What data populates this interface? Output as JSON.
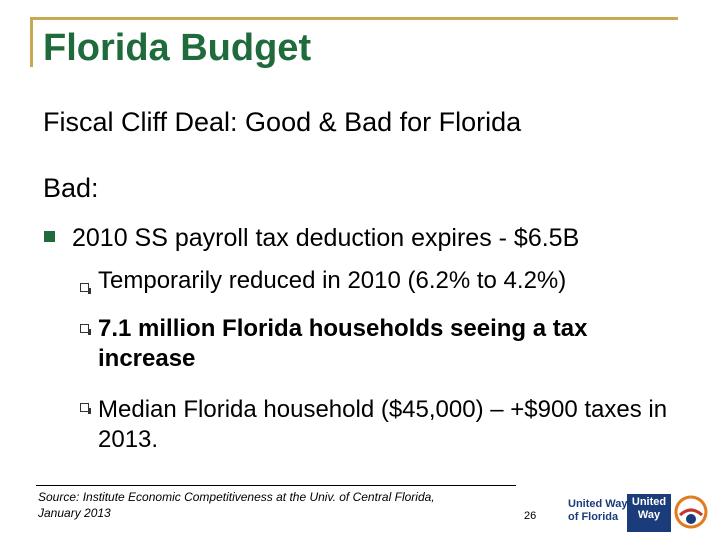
{
  "slide": {
    "title": "Florida Budget",
    "subtitle": "Fiscal Cliff Deal: Good & Bad for Florida",
    "section_label": "Bad:",
    "bullets": [
      {
        "text": "2010 SS payroll tax deduction expires - $6.5B",
        "sub": [
          "Temporarily reduced in 2010 (6.2% to 4.2%)",
          "7.1 million Florida households seeing a tax increase",
          "Median Florida household ($45,000) –  +$900 taxes in 2013."
        ]
      }
    ],
    "source_line1": "Source:  Institute Economic Competitiveness at the Univ. of Central Florida,",
    "source_line2": "January 2013",
    "page_number": "26"
  },
  "logo": {
    "left_line1": "United Way",
    "left_line2": "of Florida",
    "box_line1": "United",
    "box_line2": "Way"
  },
  "colors": {
    "title": "#1f6b3b",
    "frame": "#c8a951",
    "logo_blue": "#1a3c7a"
  }
}
